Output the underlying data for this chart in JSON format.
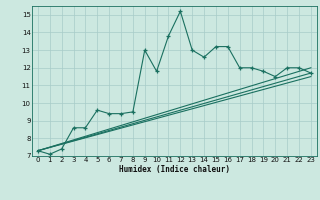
{
  "title": "",
  "xlabel": "Humidex (Indice chaleur)",
  "bg_color": "#cce8e0",
  "grid_color": "#a8ccc8",
  "line_color": "#1a7060",
  "xlim": [
    -0.5,
    23.5
  ],
  "ylim": [
    7,
    15.5
  ],
  "xticks": [
    0,
    1,
    2,
    3,
    4,
    5,
    6,
    7,
    8,
    9,
    10,
    11,
    12,
    13,
    14,
    15,
    16,
    17,
    18,
    19,
    20,
    21,
    22,
    23
  ],
  "yticks": [
    7,
    8,
    9,
    10,
    11,
    12,
    13,
    14,
    15
  ],
  "main_x": [
    0,
    1,
    2,
    3,
    4,
    5,
    6,
    7,
    8,
    9,
    10,
    11,
    12,
    13,
    14,
    15,
    16,
    17,
    18,
    19,
    20,
    21,
    22,
    23
  ],
  "main_y": [
    7.3,
    7.1,
    7.4,
    8.6,
    8.6,
    9.6,
    9.4,
    9.4,
    9.5,
    13.0,
    11.8,
    13.8,
    15.2,
    13.0,
    12.6,
    13.2,
    13.2,
    12.0,
    12.0,
    11.8,
    11.5,
    12.0,
    12.0,
    11.7
  ],
  "line2_x": [
    0,
    23
  ],
  "line2_y": [
    7.3,
    11.5
  ],
  "line3_x": [
    0,
    23
  ],
  "line3_y": [
    7.3,
    11.7
  ],
  "line4_x": [
    0,
    23
  ],
  "line4_y": [
    7.3,
    12.0
  ]
}
